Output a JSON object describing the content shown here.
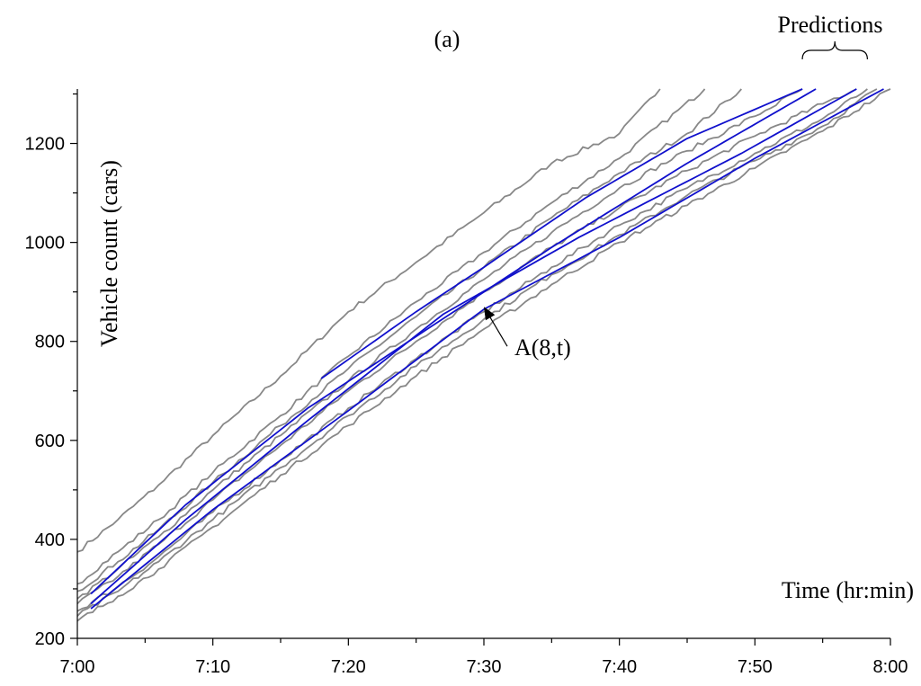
{
  "chart_data": {
    "type": "line",
    "title": "(a)",
    "xlabel": "Time (hr:min)",
    "ylabel": "Vehicle count (cars)",
    "xlim": [
      0,
      60
    ],
    "ylim": [
      200,
      1310
    ],
    "x_ticks": [
      {
        "v": 0,
        "label": "7:00"
      },
      {
        "v": 10,
        "label": "7:10"
      },
      {
        "v": 20,
        "label": "7:20"
      },
      {
        "v": 30,
        "label": "7:30"
      },
      {
        "v": 40,
        "label": "7:40"
      },
      {
        "v": 50,
        "label": "7:50"
      },
      {
        "v": 60,
        "label": "8:00"
      }
    ],
    "y_ticks": [
      {
        "v": 200,
        "label": "200"
      },
      {
        "v": 400,
        "label": "400"
      },
      {
        "v": 600,
        "label": "600"
      },
      {
        "v": 800,
        "label": "800"
      },
      {
        "v": 1000,
        "label": "1000"
      },
      {
        "v": 1200,
        "label": "1200"
      }
    ],
    "annotations": {
      "curve_label": "A(8,t)",
      "bracket_label": "Predictions",
      "arrow_point": [
        30.0,
        870
      ],
      "bracket_range": [
        53.5,
        58.3
      ]
    },
    "colors": {
      "observed": "#888888",
      "predicted": "#1010cc"
    },
    "series": [
      {
        "kind": "observed",
        "points": [
          [
            0,
            375
          ],
          [
            3,
            440
          ],
          [
            6,
            510
          ],
          [
            10,
            610
          ],
          [
            15,
            730
          ],
          [
            20,
            860
          ],
          [
            25,
            960
          ],
          [
            30,
            1060
          ],
          [
            35,
            1160
          ],
          [
            40,
            1220
          ],
          [
            43,
            1310
          ]
        ]
      },
      {
        "kind": "observed",
        "points": [
          [
            0,
            310
          ],
          [
            3,
            375
          ],
          [
            6,
            440
          ],
          [
            10,
            535
          ],
          [
            15,
            650
          ],
          [
            20,
            770
          ],
          [
            25,
            880
          ],
          [
            30,
            980
          ],
          [
            35,
            1080
          ],
          [
            40,
            1170
          ],
          [
            46.3,
            1310
          ]
        ]
      },
      {
        "kind": "observed",
        "points": [
          [
            0,
            295
          ],
          [
            3,
            355
          ],
          [
            6,
            420
          ],
          [
            10,
            515
          ],
          [
            15,
            630
          ],
          [
            20,
            745
          ],
          [
            25,
            850
          ],
          [
            30,
            950
          ],
          [
            35,
            1050
          ],
          [
            40,
            1140
          ],
          [
            45,
            1220
          ],
          [
            49,
            1310
          ]
        ]
      },
      {
        "kind": "observed",
        "points": [
          [
            0,
            280
          ],
          [
            3,
            340
          ],
          [
            6,
            405
          ],
          [
            10,
            500
          ],
          [
            15,
            610
          ],
          [
            20,
            720
          ],
          [
            25,
            825
          ],
          [
            30,
            925
          ],
          [
            35,
            1020
          ],
          [
            40,
            1110
          ],
          [
            45,
            1185
          ],
          [
            50,
            1255
          ],
          [
            53.5,
            1310
          ]
        ]
      },
      {
        "kind": "observed",
        "points": [
          [
            0,
            270
          ],
          [
            3,
            325
          ],
          [
            6,
            390
          ],
          [
            10,
            480
          ],
          [
            15,
            590
          ],
          [
            20,
            700
          ],
          [
            25,
            800
          ],
          [
            30,
            900
          ],
          [
            35,
            990
          ],
          [
            40,
            1070
          ],
          [
            45,
            1145
          ],
          [
            50,
            1215
          ],
          [
            55,
            1280
          ],
          [
            57.5,
            1310
          ]
        ]
      },
      {
        "kind": "observed",
        "points": [
          [
            0,
            255
          ],
          [
            3,
            305
          ],
          [
            6,
            365
          ],
          [
            10,
            455
          ],
          [
            15,
            560
          ],
          [
            20,
            665
          ],
          [
            25,
            765
          ],
          [
            30,
            860
          ],
          [
            35,
            950
          ],
          [
            40,
            1035
          ],
          [
            45,
            1110
          ],
          [
            50,
            1180
          ],
          [
            55,
            1250
          ],
          [
            58.3,
            1310
          ]
        ]
      },
      {
        "kind": "observed",
        "points": [
          [
            0,
            245
          ],
          [
            3,
            295
          ],
          [
            6,
            355
          ],
          [
            10,
            440
          ],
          [
            15,
            545
          ],
          [
            20,
            650
          ],
          [
            25,
            750
          ],
          [
            30,
            845
          ],
          [
            35,
            935
          ],
          [
            40,
            1015
          ],
          [
            45,
            1095
          ],
          [
            50,
            1165
          ],
          [
            55,
            1235
          ],
          [
            59,
            1310
          ]
        ]
      },
      {
        "kind": "observed",
        "points": [
          [
            0,
            235
          ],
          [
            3,
            285
          ],
          [
            6,
            340
          ],
          [
            10,
            425
          ],
          [
            15,
            530
          ],
          [
            20,
            630
          ],
          [
            25,
            730
          ],
          [
            30,
            825
          ],
          [
            35,
            915
          ],
          [
            40,
            1000
          ],
          [
            45,
            1075
          ],
          [
            50,
            1150
          ],
          [
            55,
            1225
          ],
          [
            60,
            1310
          ]
        ]
      },
      {
        "kind": "predicted",
        "points": [
          [
            18,
            725
          ],
          [
            25,
            860
          ],
          [
            30,
            950
          ],
          [
            37.5,
            1090
          ],
          [
            45,
            1210
          ],
          [
            53.5,
            1310
          ]
        ]
      },
      {
        "kind": "predicted",
        "points": [
          [
            1,
            290
          ],
          [
            8,
            470
          ],
          [
            17,
            665
          ],
          [
            25,
            810
          ],
          [
            35,
            990
          ],
          [
            45,
            1160
          ],
          [
            54.5,
            1310
          ]
        ]
      },
      {
        "kind": "predicted",
        "points": [
          [
            1,
            270
          ],
          [
            8,
            440
          ],
          [
            17,
            640
          ],
          [
            27,
            855
          ],
          [
            37,
            1010
          ],
          [
            49,
            1180
          ],
          [
            57.5,
            1310
          ]
        ]
      },
      {
        "kind": "predicted",
        "points": [
          [
            1,
            260
          ],
          [
            10,
            460
          ],
          [
            20,
            660
          ],
          [
            30,
            865
          ],
          [
            40,
            1010
          ],
          [
            50,
            1170
          ],
          [
            59.5,
            1310
          ]
        ]
      }
    ]
  }
}
